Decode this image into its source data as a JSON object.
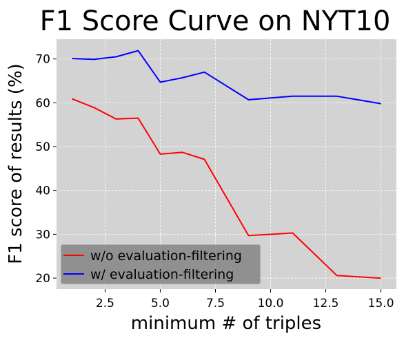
{
  "chart_data": {
    "type": "line",
    "title": "F1 Score Curve on NYT10",
    "xlabel": "minimum # of triples",
    "ylabel": "F1 score of results (%)",
    "xlim": [
      0.3,
      15.7
    ],
    "ylim": [
      17.5,
      74.5
    ],
    "xticks": [
      2.5,
      5.0,
      7.5,
      10.0,
      12.5,
      15.0
    ],
    "xtick_labels": [
      "2.5",
      "5.0",
      "7.5",
      "10.0",
      "12.5",
      "15.0"
    ],
    "yticks": [
      20,
      30,
      40,
      50,
      60,
      70
    ],
    "ytick_labels": [
      "20",
      "30",
      "40",
      "50",
      "60",
      "70"
    ],
    "grid": true,
    "background": "#d3d3d3",
    "legend_position": "lower-left",
    "series": [
      {
        "name": "w/o evaluation-filtering",
        "color": "#ff0000",
        "x": [
          1,
          2,
          3,
          4,
          5,
          6,
          7,
          9,
          11,
          13,
          15
        ],
        "y": [
          60.9,
          58.9,
          56.3,
          56.5,
          48.3,
          48.7,
          47.1,
          29.7,
          30.3,
          20.6,
          20.0
        ]
      },
      {
        "name": "w/ evaluation-filtering",
        "color": "#0000ff",
        "x": [
          1,
          2,
          3,
          4,
          5,
          6,
          7,
          9,
          11,
          13,
          15
        ],
        "y": [
          70.1,
          69.9,
          70.5,
          71.9,
          64.7,
          65.7,
          67.0,
          60.7,
          61.5,
          61.5,
          59.8
        ]
      }
    ]
  }
}
